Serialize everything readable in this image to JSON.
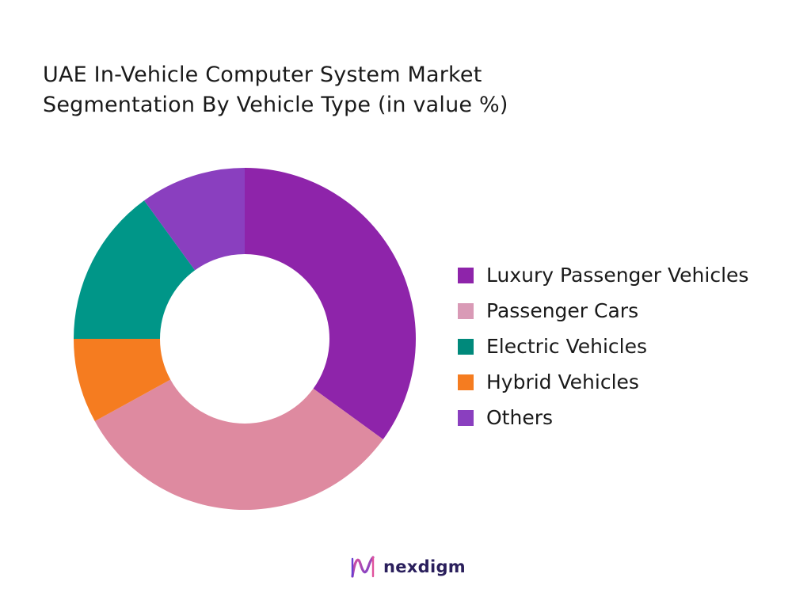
{
  "chart_data": {
    "type": "pie",
    "variant": "donut",
    "title_lines": [
      "UAE In-Vehicle Computer System Market",
      "Segmentation By Vehicle Type (in value %)"
    ],
    "categories": [
      "Luxury Passenger Vehicles",
      "Passenger Cars",
      "Electric Vehicles",
      "Hybrid Vehicles",
      "Others"
    ],
    "values": [
      35,
      32,
      15,
      8,
      10
    ],
    "slice_order_clockwise_from_top": [
      "Luxury Passenger Vehicles",
      "Passenger Cars",
      "Hybrid Vehicles",
      "Electric Vehicles",
      "Others"
    ],
    "colors": [
      "#8e24aa",
      "#de8aa0",
      "#009688",
      "#f57c20",
      "#8a3fbf"
    ],
    "legend_colors": [
      "#8e24aa",
      "#d99ab6",
      "#00897b",
      "#f57c20",
      "#8a3fbf"
    ],
    "legend_position": "right"
  },
  "brand": {
    "name": "nexdigm",
    "logo_icon": "nexdigm-logo-icon"
  }
}
